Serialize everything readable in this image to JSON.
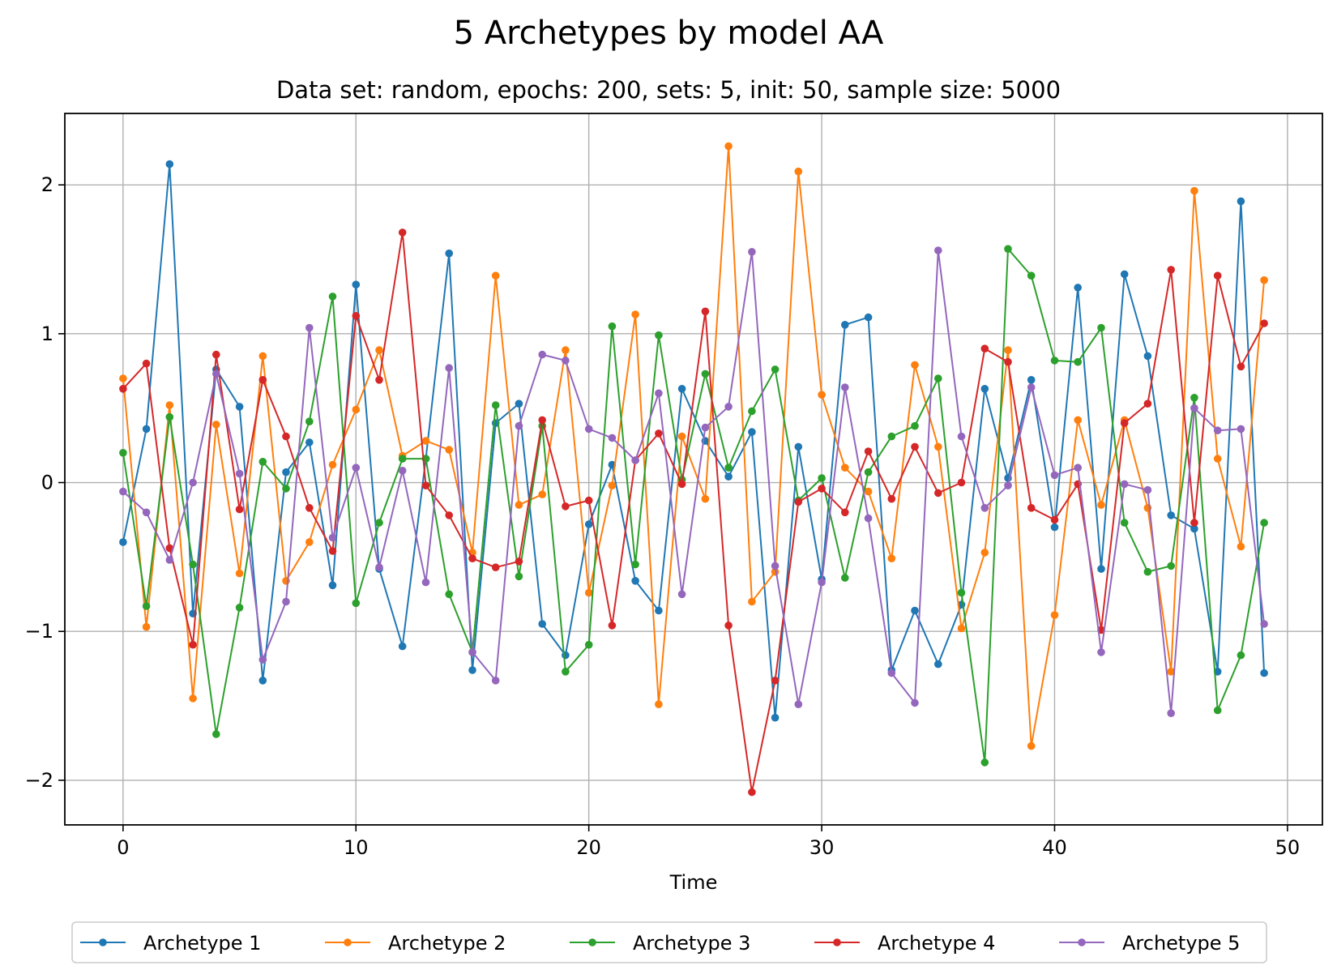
{
  "chart_data": {
    "type": "line",
    "title": "5 Archetypes by model AA",
    "subtitle": "Data set: random, epochs: 200, sets: 5, init: 50, sample size: 5000",
    "xlabel": "Time",
    "ylabel": "",
    "xlim": [
      -2.5,
      51.5
    ],
    "ylim": [
      -2.3,
      2.48
    ],
    "xticks": [
      0,
      10,
      20,
      30,
      40,
      50
    ],
    "yticks": [
      -2,
      -1,
      0,
      1,
      2
    ],
    "ytick_labels": [
      "−2",
      "−1",
      "0",
      "1",
      "2"
    ],
    "grid": true,
    "legend_position": "bottom-center",
    "x": [
      0,
      1,
      2,
      3,
      4,
      5,
      6,
      7,
      8,
      9,
      10,
      11,
      12,
      13,
      14,
      15,
      16,
      17,
      18,
      19,
      20,
      21,
      22,
      23,
      24,
      25,
      26,
      27,
      28,
      29,
      30,
      31,
      32,
      33,
      34,
      35,
      36,
      37,
      38,
      39,
      40,
      41,
      42,
      43,
      44,
      45,
      46,
      47,
      48,
      49
    ],
    "series": [
      {
        "name": "Archetype 1",
        "color": "#1f77b4",
        "values": [
          -0.4,
          0.36,
          2.14,
          -0.88,
          0.76,
          0.51,
          -1.33,
          0.07,
          0.27,
          -0.69,
          1.33,
          -0.58,
          -1.1,
          0.16,
          1.54,
          -1.26,
          0.4,
          0.53,
          -0.95,
          -1.16,
          -0.28,
          0.12,
          -0.66,
          -0.86,
          0.63,
          0.28,
          0.04,
          0.34,
          -1.58,
          0.24,
          -0.65,
          1.06,
          1.11,
          -1.26,
          -0.86,
          -1.22,
          -0.82,
          0.63,
          0.03,
          0.69,
          -0.3,
          1.31,
          -0.58,
          1.4,
          0.85,
          -0.22,
          -0.31,
          -1.27,
          1.89,
          -1.28
        ]
      },
      {
        "name": "Archetype 2",
        "color": "#ff7f0e",
        "values": [
          0.7,
          -0.97,
          0.52,
          -1.45,
          0.39,
          -0.61,
          0.85,
          -0.66,
          -0.4,
          0.12,
          0.49,
          0.89,
          0.18,
          0.28,
          0.22,
          -0.47,
          1.39,
          -0.15,
          -0.08,
          0.89,
          -0.74,
          -0.02,
          1.13,
          -1.49,
          0.31,
          -0.11,
          2.26,
          -0.8,
          -0.6,
          2.09,
          0.59,
          0.1,
          -0.06,
          -0.51,
          0.79,
          0.24,
          -0.98,
          -0.47,
          0.89,
          -1.77,
          -0.89,
          0.42,
          -0.15,
          0.42,
          -0.17,
          -1.27,
          1.96,
          0.16,
          -0.43,
          1.36
        ]
      },
      {
        "name": "Archetype 3",
        "color": "#2ca02c",
        "values": [
          0.2,
          -0.83,
          0.44,
          -0.55,
          -1.69,
          -0.84,
          0.14,
          -0.04,
          0.41,
          1.25,
          -0.81,
          -0.27,
          0.16,
          0.16,
          -0.75,
          -1.14,
          0.52,
          -0.63,
          0.38,
          -1.27,
          -1.09,
          1.05,
          -0.55,
          0.99,
          0.02,
          0.73,
          0.1,
          0.48,
          0.76,
          -0.12,
          0.03,
          -0.64,
          0.07,
          0.31,
          0.38,
          0.7,
          -0.74,
          -1.88,
          1.57,
          1.39,
          0.82,
          0.81,
          1.04,
          -0.27,
          -0.6,
          -0.56,
          0.57,
          -1.53,
          -1.16,
          -0.27
        ]
      },
      {
        "name": "Archetype 4",
        "color": "#d62728",
        "values": [
          0.63,
          0.8,
          -0.44,
          -1.09,
          0.86,
          -0.18,
          0.69,
          0.31,
          -0.17,
          -0.46,
          1.12,
          0.69,
          1.68,
          -0.02,
          -0.22,
          -0.51,
          -0.57,
          -0.53,
          0.42,
          -0.16,
          -0.12,
          -0.96,
          0.15,
          0.33,
          -0.01,
          1.15,
          -0.96,
          -2.08,
          -1.33,
          -0.13,
          -0.04,
          -0.2,
          0.21,
          -0.11,
          0.24,
          -0.07,
          0.0,
          0.9,
          0.81,
          -0.17,
          -0.25,
          -0.01,
          -0.99,
          0.4,
          0.53,
          1.43,
          -0.27,
          1.39,
          0.78,
          1.07
        ]
      },
      {
        "name": "Archetype 5",
        "color": "#9467bd",
        "values": [
          -0.06,
          -0.2,
          -0.52,
          0.0,
          0.73,
          0.06,
          -1.19,
          -0.8,
          1.04,
          -0.37,
          0.1,
          -0.57,
          0.08,
          -0.67,
          0.77,
          -1.14,
          -1.33,
          0.38,
          0.86,
          0.82,
          0.36,
          0.3,
          0.15,
          0.6,
          -0.75,
          0.37,
          0.51,
          1.55,
          -0.56,
          -1.49,
          -0.67,
          0.64,
          -0.24,
          -1.28,
          -1.48,
          1.56,
          0.31,
          -0.17,
          -0.02,
          0.64,
          0.05,
          0.1,
          -1.14,
          -0.01,
          -0.05,
          -1.55,
          0.5,
          0.35,
          0.36,
          -0.95
        ]
      }
    ]
  }
}
